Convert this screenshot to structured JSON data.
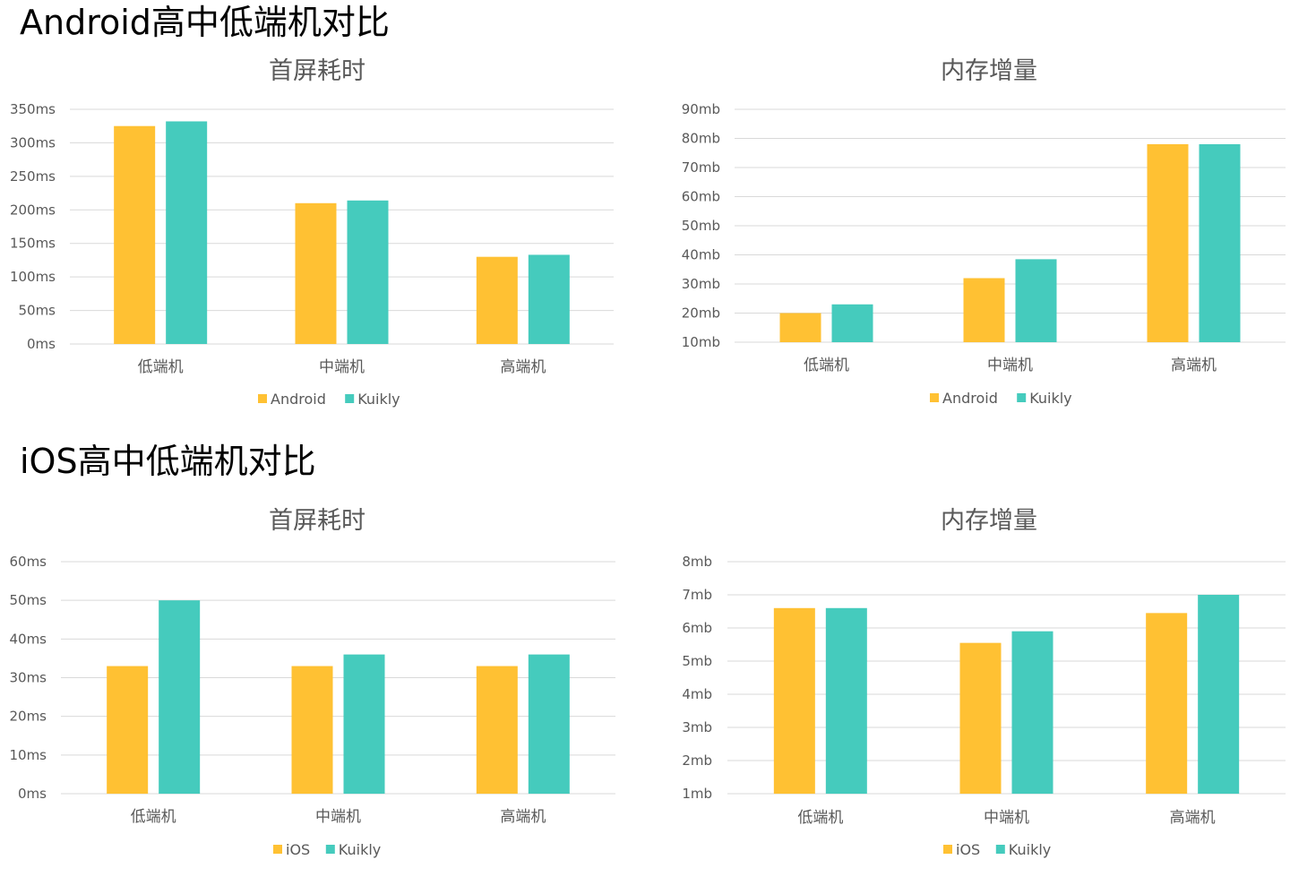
{
  "sections": [
    {
      "title": "Android高中低端机对比"
    },
    {
      "title": "iOS高中低端机对比"
    }
  ],
  "colors": {
    "primary": "#FFC133",
    "kuikly": "#45CBBD",
    "grid": "#D9D9D9",
    "text": "#595959"
  },
  "chart_data": [
    {
      "type": "bar",
      "title": "首屏耗时",
      "categories": [
        "低端机",
        "中端机",
        "高端机"
      ],
      "series": [
        {
          "name": "Android",
          "values": [
            325,
            210,
            130
          ]
        },
        {
          "name": "Kuikly",
          "values": [
            332,
            214,
            133
          ]
        }
      ],
      "ylim": [
        0,
        350
      ],
      "yticks": [
        "0ms",
        "50ms",
        "100ms",
        "150ms",
        "200ms",
        "250ms",
        "300ms",
        "350ms"
      ],
      "grid": true,
      "legend": "bottom"
    },
    {
      "type": "bar",
      "title": "内存增量",
      "categories": [
        "低端机",
        "中端机",
        "高端机"
      ],
      "series": [
        {
          "name": "Android",
          "values": [
            20,
            32,
            78
          ]
        },
        {
          "name": "Kuikly",
          "values": [
            23,
            38.5,
            78
          ]
        }
      ],
      "ylim": [
        10,
        90
      ],
      "yticks": [
        "10mb",
        "20mb",
        "30mb",
        "40mb",
        "50mb",
        "60mb",
        "70mb",
        "80mb",
        "90mb"
      ],
      "grid": true,
      "legend": "bottom"
    },
    {
      "type": "bar",
      "title": "首屏耗时",
      "categories": [
        "低端机",
        "中端机",
        "高端机"
      ],
      "series": [
        {
          "name": "iOS",
          "values": [
            33,
            33,
            33
          ]
        },
        {
          "name": "Kuikly",
          "values": [
            50,
            36,
            36
          ]
        }
      ],
      "ylim": [
        0,
        60
      ],
      "yticks": [
        "0ms",
        "10ms",
        "20ms",
        "30ms",
        "40ms",
        "50ms",
        "60ms"
      ],
      "grid": true,
      "legend": "bottom"
    },
    {
      "type": "bar",
      "title": "内存增量",
      "categories": [
        "低端机",
        "中端机",
        "高端机"
      ],
      "series": [
        {
          "name": "iOS",
          "values": [
            6.6,
            5.55,
            6.45
          ]
        },
        {
          "name": "Kuikly",
          "values": [
            6.6,
            5.9,
            7.0
          ]
        }
      ],
      "ylim": [
        1,
        8
      ],
      "yticks": [
        "1mb",
        "2mb",
        "3mb",
        "4mb",
        "5mb",
        "6mb",
        "7mb",
        "8mb"
      ],
      "grid": true,
      "legend": "bottom"
    }
  ]
}
